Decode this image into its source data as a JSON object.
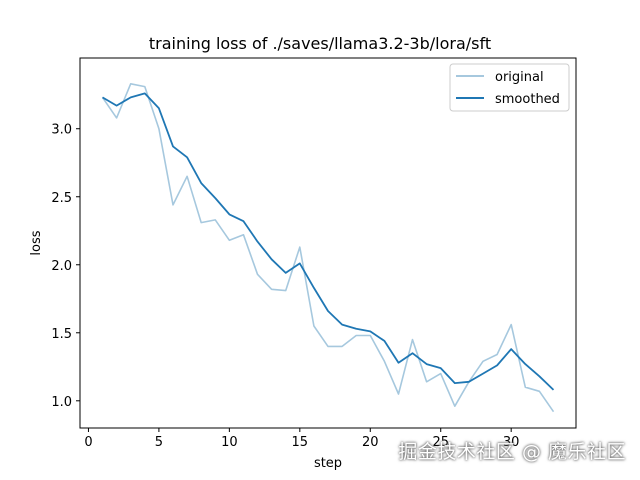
{
  "chart_data": {
    "type": "line",
    "title": "training loss of ./saves/llama3.2-3b/lora/sft",
    "xlabel": "step",
    "ylabel": "loss",
    "xlim": [
      -0.6,
      34.6
    ],
    "ylim": [
      0.8,
      3.52
    ],
    "x_ticks": [
      0,
      5,
      10,
      15,
      20,
      25,
      30
    ],
    "y_ticks": [
      1.0,
      1.5,
      2.0,
      2.5,
      3.0
    ],
    "x_tick_labels": [
      "0",
      "5",
      "10",
      "15",
      "20",
      "25",
      "30"
    ],
    "y_tick_labels": [
      "1.0",
      "1.5",
      "2.0",
      "2.5",
      "3.0"
    ],
    "legend_position": "upper-right",
    "x": [
      1,
      2,
      3,
      4,
      5,
      6,
      7,
      8,
      9,
      10,
      11,
      12,
      13,
      14,
      15,
      16,
      17,
      18,
      19,
      20,
      21,
      22,
      23,
      24,
      25,
      26,
      27,
      28,
      29,
      30,
      31,
      32,
      33
    ],
    "series": [
      {
        "name": "original",
        "color": "#a6c8de",
        "values": [
          3.23,
          3.08,
          3.33,
          3.31,
          3.0,
          2.44,
          2.65,
          2.31,
          2.33,
          2.18,
          2.22,
          1.93,
          1.82,
          1.81,
          2.13,
          1.55,
          1.4,
          1.4,
          1.48,
          1.48,
          1.29,
          1.05,
          1.45,
          1.14,
          1.2,
          0.96,
          1.14,
          1.29,
          1.34,
          1.56,
          1.1,
          1.07,
          0.92
        ]
      },
      {
        "name": "smoothed",
        "color": "#1f77b4",
        "values": [
          3.23,
          3.17,
          3.23,
          3.26,
          3.15,
          2.87,
          2.79,
          2.6,
          2.49,
          2.37,
          2.32,
          2.17,
          2.04,
          1.94,
          2.01,
          1.83,
          1.66,
          1.56,
          1.53,
          1.51,
          1.44,
          1.28,
          1.35,
          1.27,
          1.24,
          1.13,
          1.14,
          1.2,
          1.26,
          1.38,
          1.27,
          1.18,
          1.08
        ]
      }
    ]
  },
  "watermark": "掘金技术社区 @ 魔乐社区"
}
